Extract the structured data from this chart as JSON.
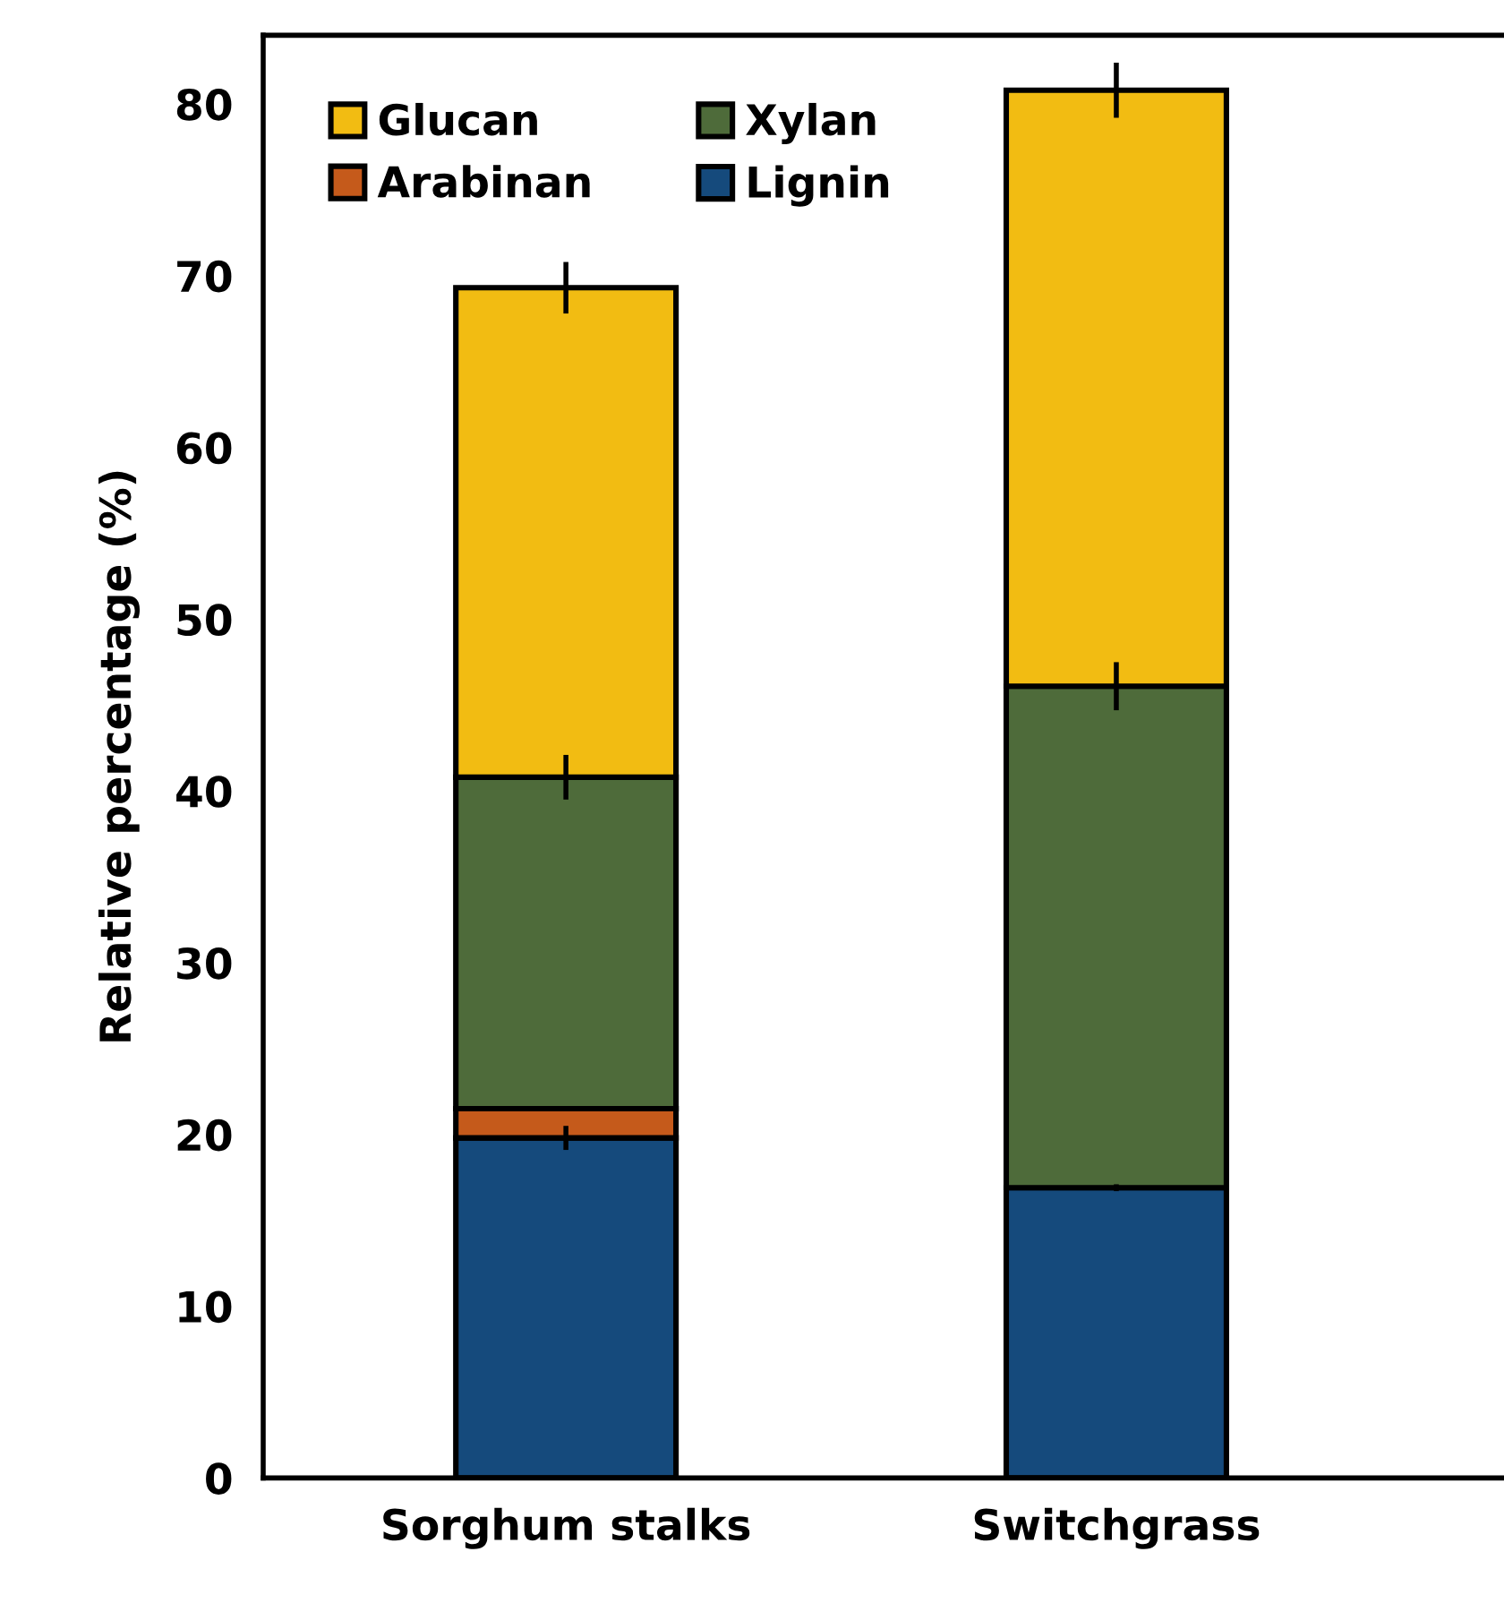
{
  "chart_data": {
    "type": "bar",
    "stacked": true,
    "ylabel": "Relative percentage (%)",
    "categories": [
      "Sorghum stalks",
      "Switchgrass"
    ],
    "series": [
      {
        "name": "Lignin",
        "color": "#154a7c",
        "values": [
          19.8,
          16.9
        ],
        "errors": [
          0.7,
          0.2
        ]
      },
      {
        "name": "Arabinan",
        "color": "#c55a1b",
        "values": [
          1.7,
          null
        ],
        "errors": [
          null,
          null
        ]
      },
      {
        "name": "Xylan",
        "color": "#4e6b3a",
        "values": [
          19.3,
          29.2
        ],
        "errors": [
          1.3,
          1.4
        ]
      },
      {
        "name": "Glucan",
        "color": "#f2bc12",
        "values": [
          28.5,
          34.7
        ],
        "errors": [
          1.5,
          1.6
        ]
      }
    ],
    "ylim": [
      0,
      84
    ],
    "yticks": [
      0,
      10,
      20,
      30,
      40,
      50,
      60,
      70,
      80
    ],
    "grid": false,
    "legend": "top left"
  }
}
